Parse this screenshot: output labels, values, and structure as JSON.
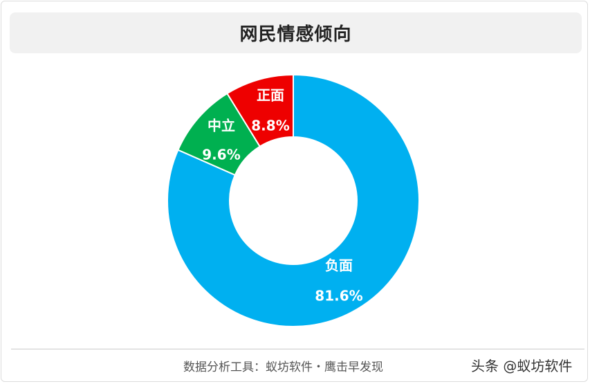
{
  "title": "网民情感倾向",
  "chart_data": {
    "type": "pie",
    "title": "网民情感倾向",
    "slices": [
      {
        "label": "负面",
        "value": 81.6,
        "display": "81.6%",
        "color": "#00b0f0"
      },
      {
        "label": "中立",
        "value": 9.6,
        "display": "9.6%",
        "color": "#00b050"
      },
      {
        "label": "正面",
        "value": 8.8,
        "display": "8.8%",
        "color": "#ee0000"
      }
    ]
  },
  "footer": {
    "source": "数据分析工具：蚁坊软件・鹰击早发现",
    "watermark": "头条 @蚁坊软件"
  }
}
